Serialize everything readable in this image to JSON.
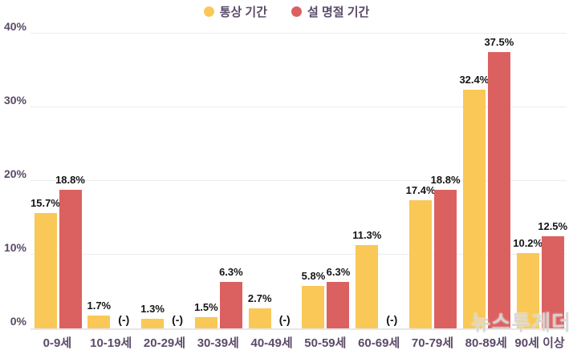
{
  "watermark": "뉴스투게더",
  "chart_data": {
    "type": "bar",
    "title": "",
    "xlabel": "",
    "ylabel": "",
    "categories": [
      "0-9세",
      "10-19세",
      "20-29세",
      "30-39세",
      "40-49세",
      "50-59세",
      "60-69세",
      "70-79세",
      "80-89세",
      "90세 이상"
    ],
    "series": [
      {
        "name": "통상 기간",
        "color": "#F9C857",
        "values": [
          15.7,
          1.7,
          1.3,
          1.5,
          2.7,
          5.8,
          11.3,
          17.4,
          32.4,
          10.2
        ],
        "labels": [
          "15.7%",
          "1.7%",
          "1.3%",
          "1.5%",
          "2.7%",
          "5.8%",
          "11.3%",
          "17.4%",
          "32.4%",
          "10.2%"
        ]
      },
      {
        "name": "설 명절 기간",
        "color": "#DB6160",
        "values": [
          18.8,
          null,
          null,
          6.3,
          null,
          6.3,
          null,
          18.8,
          37.5,
          12.5
        ],
        "labels": [
          "18.8%",
          "(-)",
          "(-)",
          "6.3%",
          "(-)",
          "6.3%",
          "(-)",
          "18.8%",
          "37.5%",
          "12.5%"
        ]
      }
    ],
    "missing_value_label": "(-)",
    "ylim": [
      0,
      40
    ],
    "yticks": [
      "0%",
      "10%",
      "20%",
      "30%",
      "40%"
    ],
    "ytick_values": [
      0,
      10,
      20,
      30,
      40
    ],
    "grid": true,
    "legend_position": "top",
    "axis_text_color": "#5b4a68",
    "value_label_color": "#141414"
  }
}
